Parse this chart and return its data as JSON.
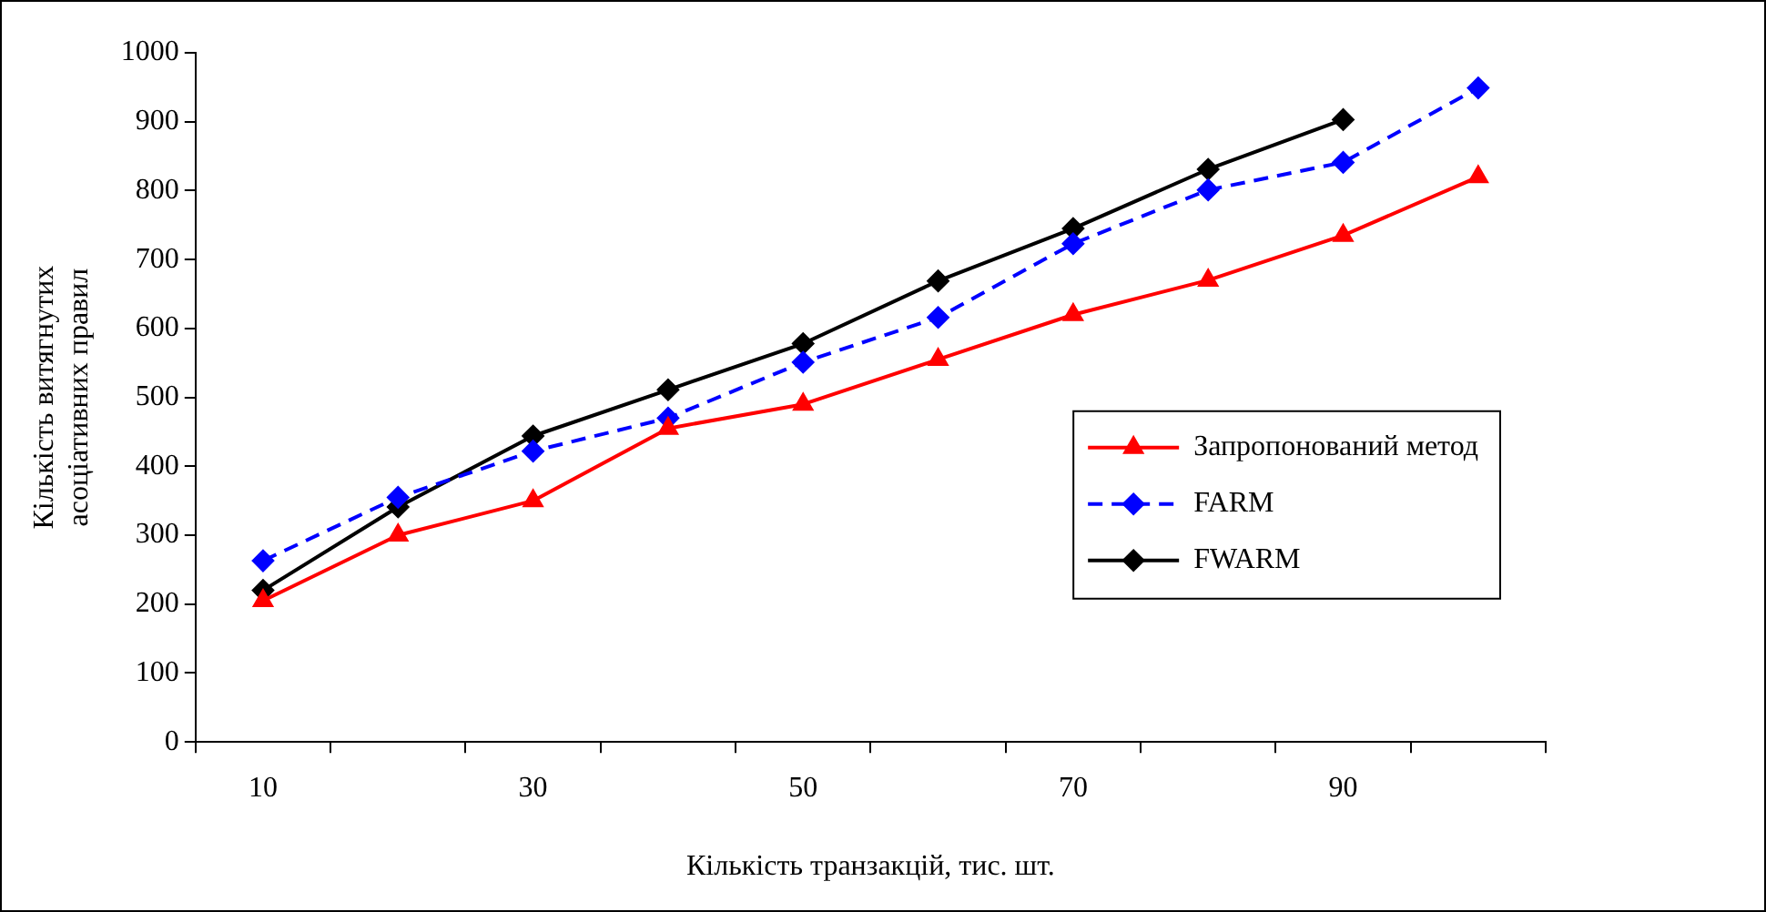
{
  "chart_data": {
    "type": "line",
    "xlabel": "Кількість транзакцій, тис. шт.",
    "ylabel": "Кількість витягнутих асоціативних правил",
    "categories": [
      "10",
      null,
      "30",
      null,
      "50",
      null,
      "70",
      null,
      "90",
      null
    ],
    "series": [
      {
        "name": "Запропонований метод",
        "color": "#ff0000",
        "marker": "triangle",
        "line_style": "solid",
        "values": [
          205,
          300,
          350,
          455,
          490,
          555,
          620,
          670,
          735,
          820
        ]
      },
      {
        "name": "FARM",
        "color": "#0000ff",
        "marker": "diamond",
        "line_style": "dashed",
        "values": [
          263,
          355,
          422,
          470,
          551,
          616,
          723,
          801,
          841,
          949
        ]
      },
      {
        "name": "FWARM",
        "color": "#000000",
        "marker": "diamond",
        "line_style": "solid",
        "values": [
          220,
          341,
          444,
          511,
          578,
          669,
          745,
          831,
          903,
          null
        ]
      }
    ],
    "ylim": [
      0,
      1000
    ],
    "yticks": [
      0,
      100,
      200,
      300,
      400,
      500,
      600,
      700,
      800,
      900,
      1000
    ],
    "grid": false,
    "legend": "right"
  }
}
